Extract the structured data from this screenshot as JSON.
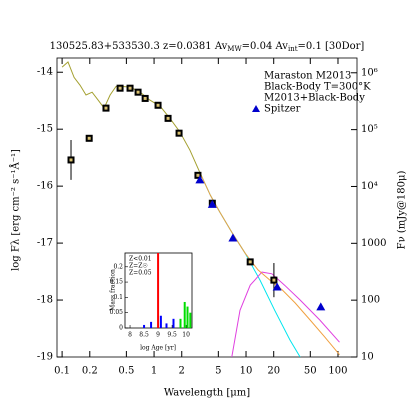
{
  "chart_data": [
    {
      "type": "scatter",
      "title": [
        "130525.83+533530.3  z=0.0381  Av",
        "MW",
        "=0.04  Av",
        "int",
        "=0.1  [30Dor]"
      ],
      "x_label": "Wavelength [μm]",
      "y_label": "log Fλ [erg cm⁻² s⁻¹Å⁻¹]",
      "y2_label": "Fν (mJy@180μ)",
      "xlog": true,
      "xlim": [
        0.088,
        161
      ],
      "xticks": [
        0.1,
        0.2,
        0.5,
        1,
        2,
        5,
        10,
        20,
        50,
        100
      ],
      "ylim": [
        -19,
        -13.75
      ],
      "yticks": [
        -14,
        -15,
        -16,
        -17,
        -18,
        -19
      ],
      "y2log": true,
      "y2lim": [
        10,
        1820000
      ],
      "y2ticks": [
        {
          "value": 1000000,
          "label": "10⁶"
        },
        {
          "value": 100000,
          "label": "10⁵"
        },
        {
          "value": 10000,
          "label": "10⁴"
        },
        1000,
        100,
        10
      ],
      "legend": "upper right",
      "series": [
        {
          "color": "#a4a030",
          "style": "line",
          "x": [
            0.1,
            0.116,
            0.135,
            0.157,
            0.182,
            0.212,
            0.246,
            0.286,
            0.333,
            0.386,
            0.449,
            0.548,
            0.705,
            0.9,
            1.17,
            1.49,
            1.91,
            2.46,
            3.13
          ],
          "values": [
            -13.91,
            -13.82,
            -14.09,
            -14.23,
            -14.4,
            -14.35,
            -14.49,
            -14.63,
            -14.4,
            -14.25,
            -14.25,
            -14.26,
            -14.35,
            -14.49,
            -14.6,
            -14.81,
            -15.05,
            -15.37,
            -15.75
          ]
        },
        {
          "name": "Maraston M2013",
          "color": "#00e5ee",
          "style": "line",
          "x": [
            3.13,
            4.1,
            5.2,
            7.0,
            9.8,
            14.2,
            20.5,
            30.0,
            38.7
          ],
          "values": [
            -15.75,
            -16.16,
            -16.46,
            -16.81,
            -17.18,
            -17.65,
            -18.18,
            -18.7,
            -19.0
          ]
        },
        {
          "name": "Black-Body T=300°K",
          "color": "#e040e0",
          "style": "line",
          "x": [
            7.0,
            8.6,
            11.1,
            14.9,
            19.1,
            26.3,
            38.7,
            63.5,
            104
          ],
          "values": [
            -19.0,
            -18.18,
            -17.74,
            -17.51,
            -17.54,
            -17.74,
            -18.0,
            -18.35,
            -18.74
          ]
        },
        {
          "name": "M2013+Black-Body",
          "color": "#f0a040",
          "style": "line",
          "x": [
            3.13,
            4.1,
            5.2,
            7.0,
            9.8,
            13.5,
            18.2,
            24.7,
            34.2,
            49.7,
            71.9,
            104
          ],
          "values": [
            -15.75,
            -16.16,
            -16.46,
            -16.81,
            -17.18,
            -17.47,
            -17.65,
            -17.82,
            -18.05,
            -18.35,
            -18.65,
            -18.96
          ]
        },
        {
          "color": "#000000",
          "style": "square",
          "x": [
            0.125,
            0.197,
            0.3,
            0.427,
            0.548,
            0.67,
            0.8,
            1.105,
            1.42,
            1.87,
            3.0,
            4.3,
            11.1,
            20.1
          ],
          "values": [
            -15.54,
            -15.16,
            -14.63,
            -14.28,
            -14.28,
            -14.35,
            -14.46,
            -14.58,
            -14.81,
            -15.07,
            -15.81,
            -16.3,
            -17.33,
            -17.65
          ],
          "errors": [
            0.35,
            null,
            null,
            null,
            null,
            null,
            null,
            null,
            null,
            null,
            null,
            null,
            null,
            0.3
          ]
        },
        {
          "name": "Spitzer",
          "color": "#0000cc",
          "style": "triangle",
          "x": [
            3.15,
            4.3,
            7.2,
            21.8,
            65
          ],
          "values": [
            -15.89,
            -16.32,
            -16.91,
            -17.77,
            -18.12
          ]
        }
      ]
    },
    {
      "type": "bar",
      "x_label": "log Age [yr]",
      "y_label": "Mass fraction",
      "xlim": [
        7.82,
        10.21
      ],
      "xticks": [
        8,
        8.5,
        9,
        9.5,
        10
      ],
      "ylim": [
        0,
        0.245
      ],
      "yticks": [
        0,
        0.05,
        0.1,
        0.15,
        0.2
      ],
      "series": [
        {
          "name": "Z<0.01",
          "color": "#0000ff",
          "x": [
            8.5,
            8.75,
            9.1,
            9.3,
            9.55
          ],
          "values": [
            0.01,
            0.02,
            0.04,
            0.015,
            0.03
          ]
        },
        {
          "name": "Z=Z☉",
          "color": "#00dd00",
          "x": [
            9.8,
            9.95,
            10.05,
            10.15
          ],
          "values": [
            0.03,
            0.085,
            0.07,
            0.05
          ]
        },
        {
          "name": "Z=0.05",
          "color": "#ff0000",
          "x": [
            9.0
          ],
          "values": [
            0.245
          ]
        }
      ]
    }
  ]
}
